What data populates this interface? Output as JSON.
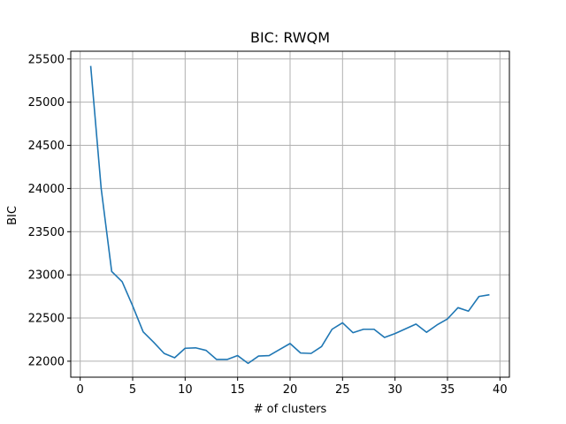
{
  "chart_data": {
    "type": "line",
    "title": "BIC: RWQM",
    "xlabel": "# of clusters",
    "ylabel": "BIC",
    "xlim": [
      -0.9,
      40.9
    ],
    "ylim": [
      21815,
      25590
    ],
    "xticks": [
      0,
      5,
      10,
      15,
      20,
      25,
      30,
      35,
      40
    ],
    "yticks": [
      22000,
      22500,
      23000,
      23500,
      24000,
      24500,
      25000,
      25500
    ],
    "grid": true,
    "line_color": "#1f77b4",
    "series": [
      {
        "x": [
          1,
          2,
          3,
          4,
          5,
          6,
          7,
          8,
          9,
          10,
          11,
          12,
          13,
          14,
          15,
          16,
          17,
          18,
          19,
          20,
          21,
          22,
          23,
          24,
          25,
          26,
          27,
          28,
          29,
          30,
          31,
          32,
          33,
          34,
          35,
          36,
          37,
          38,
          39
        ],
        "values": [
          25420,
          24000,
          23040,
          22920,
          22640,
          22340,
          22220,
          22090,
          22040,
          22150,
          22155,
          22125,
          22020,
          22020,
          22065,
          21975,
          22060,
          22065,
          22135,
          22205,
          22095,
          22090,
          22170,
          22370,
          22445,
          22330,
          22370,
          22370,
          22275,
          22320,
          22375,
          22430,
          22335,
          22420,
          22490,
          22620,
          22580,
          22750,
          22770
        ]
      }
    ]
  }
}
